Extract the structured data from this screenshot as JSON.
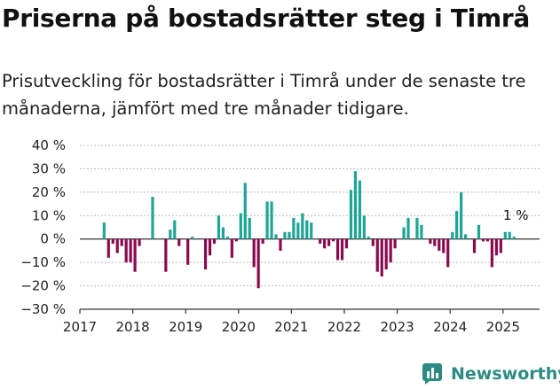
{
  "title": "Priserna på bostadsrätter steg i Timrå",
  "subtitle": "Prisutveckling för bostadsrätter i Timrå under de senaste tre månaderna, jämfört med tre månader tidigare.",
  "brand": "Newsworthy",
  "colors": {
    "positive": "#1fa595",
    "negative": "#8b0a4f",
    "brand": "#2b8a83",
    "axis": "#333333",
    "grid": "#bbbbbb"
  },
  "chart_data": {
    "type": "bar",
    "title": "Priserna på bostadsrätter steg i Timrå",
    "xlabel": "",
    "ylabel": "",
    "ylim": [
      -30,
      40
    ],
    "yticks": [
      -30,
      -20,
      -10,
      0,
      10,
      20,
      30,
      40
    ],
    "ytick_labels": [
      "−30 %",
      "−20 %",
      "−10 %",
      "0 %",
      "10 %",
      "20 %",
      "30 %",
      "40 %"
    ],
    "xticks": [
      2017,
      2018,
      2019,
      2020,
      2021,
      2022,
      2023,
      2024,
      2025
    ],
    "xtick_labels": [
      "2017",
      "2018",
      "2019",
      "2020",
      "2021",
      "2022",
      "2023",
      "2024",
      "2025"
    ],
    "grid": true,
    "annotation": {
      "text": "1 %",
      "x": "2025-03",
      "y": 1
    },
    "x": [
      "2017-06",
      "2017-07",
      "2017-08",
      "2017-09",
      "2017-10",
      "2017-11",
      "2017-12",
      "2018-01",
      "2018-02",
      "2018-03",
      "2018-04",
      "2018-05",
      "2018-06",
      "2018-07",
      "2018-08",
      "2018-09",
      "2018-10",
      "2018-11",
      "2018-12",
      "2019-01",
      "2019-02",
      "2019-03",
      "2019-04",
      "2019-05",
      "2019-06",
      "2019-07",
      "2019-08",
      "2019-09",
      "2019-10",
      "2019-11",
      "2019-12",
      "2020-01",
      "2020-02",
      "2020-03",
      "2020-04",
      "2020-05",
      "2020-06",
      "2020-07",
      "2020-08",
      "2020-09",
      "2020-10",
      "2020-11",
      "2020-12",
      "2021-01",
      "2021-02",
      "2021-03",
      "2021-04",
      "2021-05",
      "2021-06",
      "2021-07",
      "2021-08",
      "2021-09",
      "2021-10",
      "2021-11",
      "2021-12",
      "2022-01",
      "2022-02",
      "2022-03",
      "2022-04",
      "2022-05",
      "2022-06",
      "2022-07",
      "2022-08",
      "2022-09",
      "2022-10",
      "2022-11",
      "2022-12",
      "2023-01",
      "2023-02",
      "2023-03",
      "2023-04",
      "2023-05",
      "2023-06",
      "2023-07",
      "2023-08",
      "2023-09",
      "2023-10",
      "2023-11",
      "2023-12",
      "2024-01",
      "2024-02",
      "2024-03",
      "2024-04",
      "2024-05",
      "2024-06",
      "2024-07",
      "2024-08",
      "2024-09",
      "2024-10",
      "2024-11",
      "2024-12",
      "2025-01",
      "2025-02",
      "2025-03"
    ],
    "values": [
      7,
      -8,
      -2,
      -6,
      -3,
      -10,
      -10,
      -14,
      -3,
      0,
      0,
      18,
      0,
      0,
      -14,
      4,
      8,
      -3,
      0,
      -11,
      1,
      0,
      0,
      -13,
      -7,
      -2,
      10,
      5,
      1,
      -8,
      -1,
      11,
      24,
      9,
      -12,
      -21,
      -2,
      16,
      16,
      2,
      -5,
      3,
      3,
      9,
      7,
      11,
      8,
      7,
      0,
      -2,
      -4,
      -3,
      -1,
      -9,
      -9,
      -4,
      21,
      29,
      25,
      10,
      1,
      -3,
      -14,
      -16,
      -13,
      -10,
      -4,
      0,
      5,
      9,
      0,
      9,
      6,
      0,
      -2,
      -3,
      -5,
      -6,
      -12,
      3,
      12,
      20,
      2,
      0,
      -6,
      6,
      -1,
      -1,
      -12,
      -7,
      -6,
      3,
      3,
      1
    ]
  }
}
